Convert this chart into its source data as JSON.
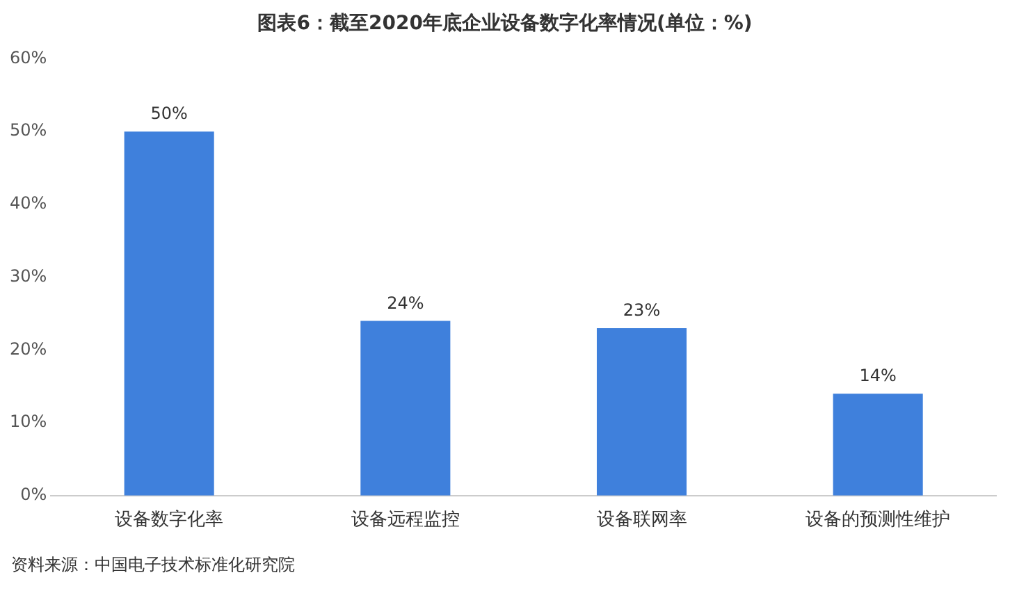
{
  "chart_data": {
    "type": "bar",
    "title": "图表6：截至2020年底企业设备数字化率情况(单位：%)",
    "categories": [
      "设备数字化率",
      "设备远程监控",
      "设备联网率",
      "设备的预测性维护"
    ],
    "values": [
      50,
      24,
      23,
      14
    ],
    "color": "#3f80dc",
    "value_labels": [
      "50%",
      "24%",
      "23%",
      "14%"
    ],
    "ylim": [
      0,
      60
    ],
    "yticks": [
      {
        "value": 0,
        "label": "0%"
      },
      {
        "value": 10,
        "label": "10%"
      },
      {
        "value": 20,
        "label": "20%"
      },
      {
        "value": 30,
        "label": "30%"
      },
      {
        "value": 40,
        "label": "40%"
      },
      {
        "value": 50,
        "label": "50%"
      },
      {
        "value": 60,
        "label": "60%"
      }
    ],
    "grid": false,
    "legend": false,
    "annotations": [
      "资料来源：中国电子技术标准化研究院"
    ]
  }
}
